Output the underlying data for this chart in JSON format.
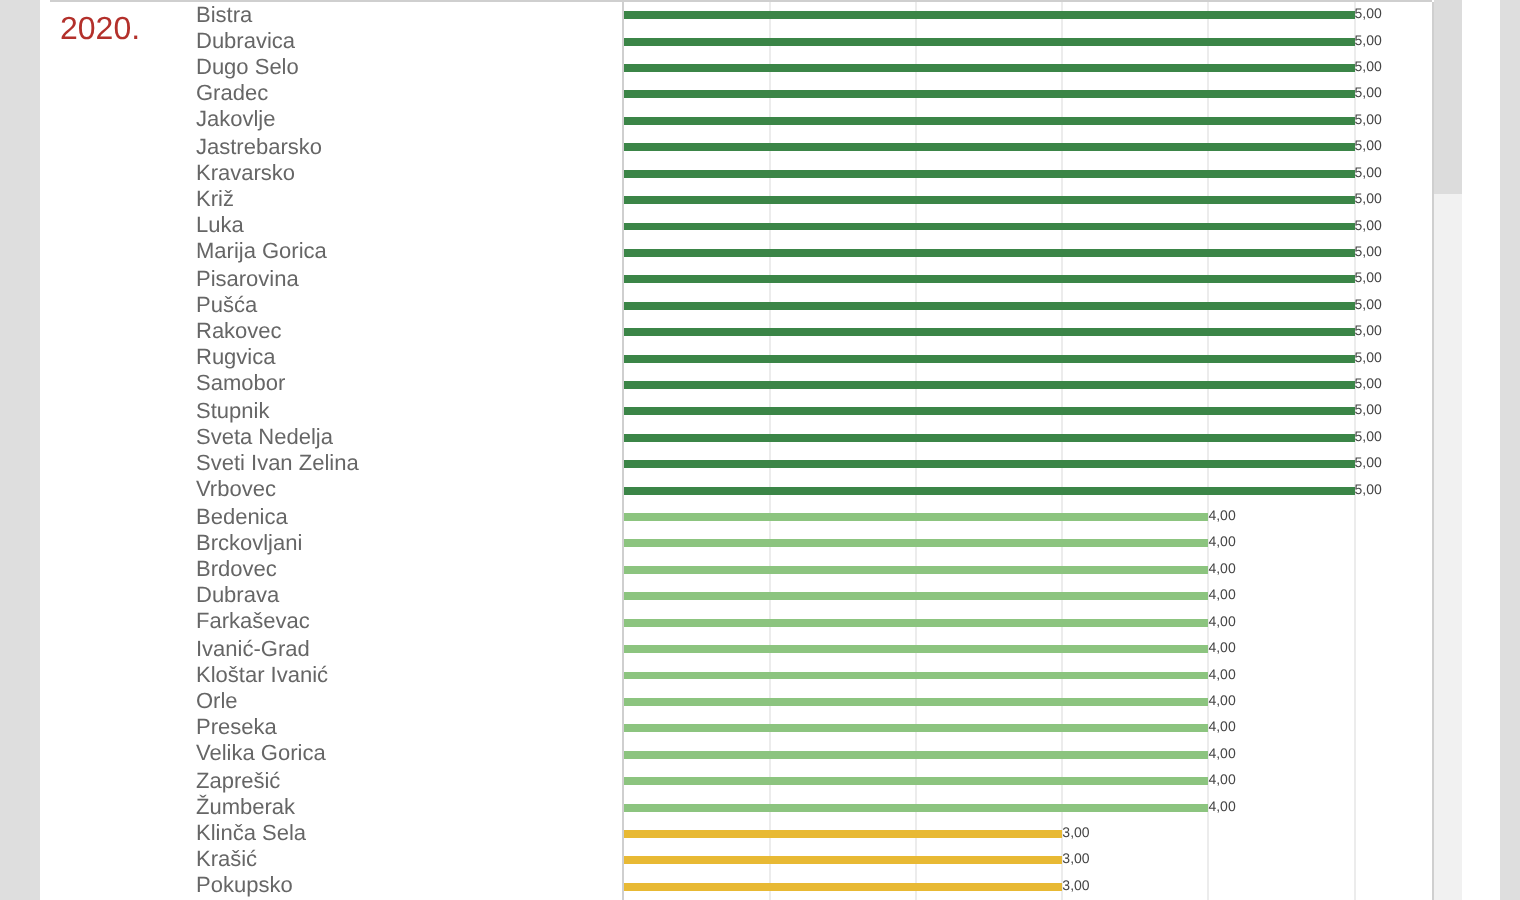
{
  "chart_data": {
    "type": "bar",
    "orientation": "horizontal",
    "title": "2020.",
    "categories": [
      "Bistra",
      "Dubravica",
      "Dugo Selo",
      "Gradec",
      "Jakovlje",
      "Jastrebarsko",
      "Kravarsko",
      "Križ",
      "Luka",
      "Marija Gorica",
      "Pisarovina",
      "Pušća",
      "Rakovec",
      "Rugvica",
      "Samobor",
      "Stupnik",
      "Sveta Nedelja",
      "Sveti Ivan Zelina",
      "Vrbovec",
      "Bedenica",
      "Brckovljani",
      "Brdovec",
      "Dubrava",
      "Farkaševac",
      "Ivanić-Grad",
      "Kloštar Ivanić",
      "Orle",
      "Preseka",
      "Velika Gorica",
      "Zaprešić",
      "Žumberak",
      "Klinča Sela",
      "Krašić",
      "Pokupsko"
    ],
    "values": [
      5,
      5,
      5,
      5,
      5,
      5,
      5,
      5,
      5,
      5,
      5,
      5,
      5,
      5,
      5,
      5,
      5,
      5,
      5,
      4,
      4,
      4,
      4,
      4,
      4,
      4,
      4,
      4,
      4,
      4,
      4,
      3,
      3,
      3
    ],
    "value_labels": [
      "5,00",
      "5,00",
      "5,00",
      "5,00",
      "5,00",
      "5,00",
      "5,00",
      "5,00",
      "5,00",
      "5,00",
      "5,00",
      "5,00",
      "5,00",
      "5,00",
      "5,00",
      "5,00",
      "5,00",
      "5,00",
      "5,00",
      "4,00",
      "4,00",
      "4,00",
      "4,00",
      "4,00",
      "4,00",
      "4,00",
      "4,00",
      "4,00",
      "4,00",
      "4,00",
      "4,00",
      "3,00",
      "3,00",
      "3,00"
    ],
    "colors": [
      "#3b8547",
      "#3b8547",
      "#3b8547",
      "#3b8547",
      "#3b8547",
      "#3b8547",
      "#3b8547",
      "#3b8547",
      "#3b8547",
      "#3b8547",
      "#3b8547",
      "#3b8547",
      "#3b8547",
      "#3b8547",
      "#3b8547",
      "#3b8547",
      "#3b8547",
      "#3b8547",
      "#3b8547",
      "#8cc47f",
      "#8cc47f",
      "#8cc47f",
      "#8cc47f",
      "#8cc47f",
      "#8cc47f",
      "#8cc47f",
      "#8cc47f",
      "#8cc47f",
      "#8cc47f",
      "#8cc47f",
      "#8cc47f",
      "#e8b934",
      "#e8b934",
      "#e8b934"
    ],
    "xlim": [
      0,
      5.53
    ],
    "xticks": [
      {
        "value": 1,
        "label": null
      },
      {
        "value": 2,
        "label": null
      },
      {
        "value": 3,
        "label": null
      },
      {
        "value": 4,
        "label": null
      },
      {
        "value": 5,
        "label": null
      }
    ],
    "grid": "x",
    "tick_labels": "y"
  }
}
